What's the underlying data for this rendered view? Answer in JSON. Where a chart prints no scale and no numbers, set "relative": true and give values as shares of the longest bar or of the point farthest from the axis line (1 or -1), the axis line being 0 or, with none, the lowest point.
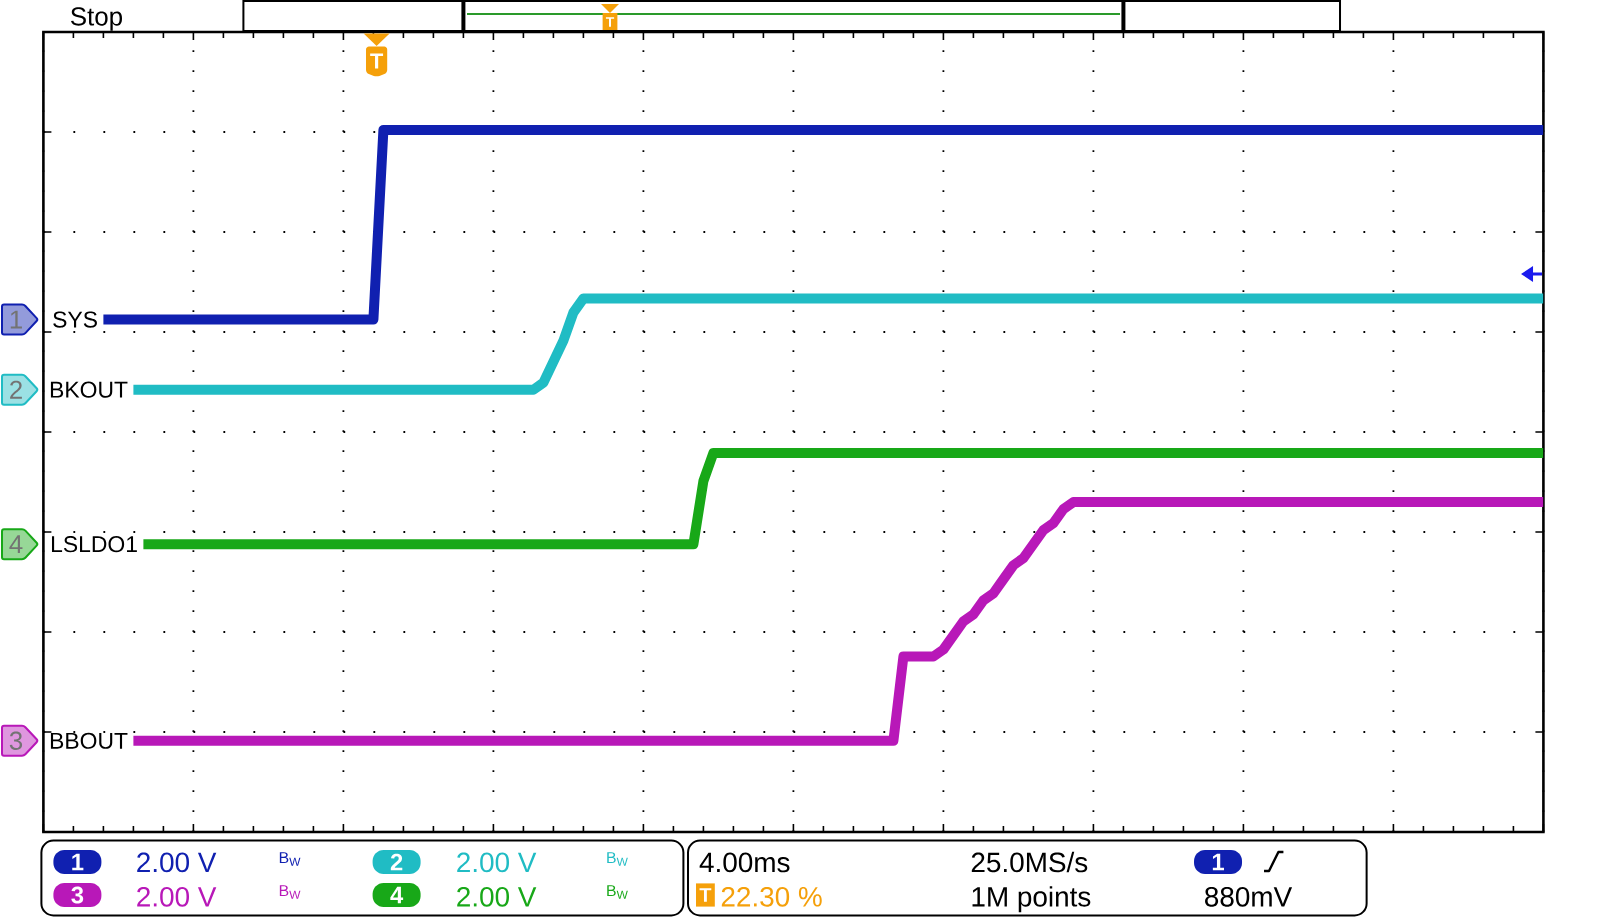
{
  "chart_data": {
    "type": "line",
    "relative": true,
    "grid": true,
    "line_style": "solid",
    "categories": [
      null,
      null,
      null,
      null,
      null,
      null,
      null,
      null,
      null,
      null,
      null,
      null,
      null,
      null,
      null,
      null,
      null,
      null,
      null,
      null,
      null,
      null,
      null,
      null,
      null,
      null,
      null,
      null,
      null,
      null,
      null,
      null,
      null,
      null,
      null,
      null,
      null,
      null,
      null,
      null,
      null,
      null,
      null,
      null,
      null,
      null,
      null,
      null,
      null,
      null,
      null,
      null,
      null,
      null,
      null,
      null,
      null,
      null,
      null,
      null,
      null,
      null,
      null,
      null,
      null,
      null,
      null,
      null,
      null,
      null,
      null,
      null,
      null,
      null,
      null,
      null,
      null,
      null,
      null,
      null,
      null,
      null,
      null,
      null,
      null,
      null,
      null,
      null,
      null,
      null,
      null,
      null,
      null,
      null,
      null,
      null,
      null,
      null,
      null,
      null,
      null,
      null,
      null,
      null,
      null,
      null,
      null,
      null,
      null,
      null,
      null,
      null,
      null,
      null,
      null,
      null,
      null,
      null,
      null,
      null,
      null,
      null,
      null,
      null,
      null,
      null,
      null,
      null,
      null,
      null,
      null,
      null,
      null,
      null,
      null,
      null,
      null,
      null,
      null,
      null,
      null,
      null,
      null,
      null,
      null,
      null,
      null,
      null,
      null,
      null,
      null
    ],
    "series": [
      {
        "name": "SYS",
        "color": "#1020b0",
        "values": [
          null,
          null,
          null,
          null,
          null,
          null,
          0.73,
          0.73,
          0.73,
          0.73,
          0.73,
          0.73,
          0.73,
          0.73,
          0.73,
          0.73,
          0.73,
          0.73,
          0.73,
          0.73,
          0.73,
          0.73,
          0.73,
          0.73,
          0.73,
          0.73,
          0.73,
          0.73,
          0.73,
          0.73,
          0.73,
          0.73,
          0.73,
          0.73,
          1,
          1,
          1,
          1,
          1,
          1,
          1,
          1,
          1,
          1,
          1,
          1,
          1,
          1,
          1,
          1,
          1,
          1,
          1,
          1,
          1,
          1,
          1,
          1,
          1,
          1,
          1,
          1,
          1,
          1,
          1,
          1,
          1,
          1,
          1,
          1,
          1,
          1,
          1,
          1,
          1,
          1,
          1,
          1,
          1,
          1,
          1,
          1,
          1,
          1,
          1,
          1,
          1,
          1,
          1,
          1,
          1,
          1,
          1,
          1,
          1,
          1,
          1,
          1,
          1,
          1,
          1,
          1,
          1,
          1,
          1,
          1,
          1,
          1,
          1,
          1,
          1,
          1,
          1,
          1,
          1,
          1,
          1,
          1,
          1,
          1,
          1,
          1,
          1,
          1,
          1,
          1,
          1,
          1,
          1,
          1,
          1,
          1,
          1,
          1,
          1,
          1,
          1,
          1,
          1,
          1,
          1,
          1,
          1,
          1,
          1,
          1,
          1,
          1,
          1,
          1,
          1
        ]
      },
      {
        "name": "BKOUT",
        "color": "#20bcc4",
        "values": [
          null,
          null,
          null,
          null,
          null,
          null,
          null,
          null,
          null,
          0.63,
          0.63,
          0.63,
          0.63,
          0.63,
          0.63,
          0.63,
          0.63,
          0.63,
          0.63,
          0.63,
          0.63,
          0.63,
          0.63,
          0.63,
          0.63,
          0.63,
          0.63,
          0.63,
          0.63,
          0.63,
          0.63,
          0.63,
          0.63,
          0.63,
          0.63,
          0.63,
          0.63,
          0.63,
          0.63,
          0.63,
          0.63,
          0.63,
          0.63,
          0.63,
          0.63,
          0.63,
          0.63,
          0.63,
          0.63,
          0.63,
          0.64,
          0.67,
          0.7,
          0.74,
          0.76,
          0.76,
          0.76,
          0.76,
          0.76,
          0.76,
          0.76,
          0.76,
          0.76,
          0.76,
          0.76,
          0.76,
          0.76,
          0.76,
          0.76,
          0.76,
          0.76,
          0.76,
          0.76,
          0.76,
          0.76,
          0.76,
          0.76,
          0.76,
          0.76,
          0.76,
          0.76,
          0.76,
          0.76,
          0.76,
          0.76,
          0.76,
          0.76,
          0.76,
          0.76,
          0.76,
          0.76,
          0.76,
          0.76,
          0.76,
          0.76,
          0.76,
          0.76,
          0.76,
          0.76,
          0.76,
          0.76,
          0.76,
          0.76,
          0.76,
          0.76,
          0.76,
          0.76,
          0.76,
          0.76,
          0.76,
          0.76,
          0.76,
          0.76,
          0.76,
          0.76,
          0.76,
          0.76,
          0.76,
          0.76,
          0.76,
          0.76,
          0.76,
          0.76,
          0.76,
          0.76,
          0.76,
          0.76,
          0.76,
          0.76,
          0.76,
          0.76,
          0.76,
          0.76,
          0.76,
          0.76,
          0.76,
          0.76,
          0.76,
          0.76,
          0.76,
          0.76,
          0.76,
          0.76,
          0.76,
          0.76,
          0.76,
          0.76,
          0.76,
          0.76,
          0.76,
          0.76
        ]
      },
      {
        "name": "LSLDO1",
        "color": "#18a818",
        "values": [
          null,
          null,
          null,
          null,
          null,
          null,
          null,
          null,
          null,
          null,
          0.41,
          0.41,
          0.41,
          0.41,
          0.41,
          0.41,
          0.41,
          0.41,
          0.41,
          0.41,
          0.41,
          0.41,
          0.41,
          0.41,
          0.41,
          0.41,
          0.41,
          0.41,
          0.41,
          0.41,
          0.41,
          0.41,
          0.41,
          0.41,
          0.41,
          0.41,
          0.41,
          0.41,
          0.41,
          0.41,
          0.41,
          0.41,
          0.41,
          0.41,
          0.41,
          0.41,
          0.41,
          0.41,
          0.41,
          0.41,
          0.41,
          0.41,
          0.41,
          0.41,
          0.41,
          0.41,
          0.41,
          0.41,
          0.41,
          0.41,
          0.41,
          0.41,
          0.41,
          0.41,
          0.41,
          0.41,
          0.5,
          0.54,
          0.54,
          0.54,
          0.54,
          0.54,
          0.54,
          0.54,
          0.54,
          0.54,
          0.54,
          0.54,
          0.54,
          0.54,
          0.54,
          0.54,
          0.54,
          0.54,
          0.54,
          0.54,
          0.54,
          0.54,
          0.54,
          0.54,
          0.54,
          0.54,
          0.54,
          0.54,
          0.54,
          0.54,
          0.54,
          0.54,
          0.54,
          0.54,
          0.54,
          0.54,
          0.54,
          0.54,
          0.54,
          0.54,
          0.54,
          0.54,
          0.54,
          0.54,
          0.54,
          0.54,
          0.54,
          0.54,
          0.54,
          0.54,
          0.54,
          0.54,
          0.54,
          0.54,
          0.54,
          0.54,
          0.54,
          0.54,
          0.54,
          0.54,
          0.54,
          0.54,
          0.54,
          0.54,
          0.54,
          0.54,
          0.54,
          0.54,
          0.54,
          0.54,
          0.54,
          0.54,
          0.54,
          0.54,
          0.54,
          0.54,
          0.54,
          0.54,
          0.54,
          0.54,
          0.54,
          0.54,
          0.54,
          0.54,
          0.54
        ]
      },
      {
        "name": "BBOUT",
        "color": "#b818b8",
        "values": [
          null,
          null,
          null,
          null,
          null,
          null,
          null,
          null,
          null,
          0.13,
          0.13,
          0.13,
          0.13,
          0.13,
          0.13,
          0.13,
          0.13,
          0.13,
          0.13,
          0.13,
          0.13,
          0.13,
          0.13,
          0.13,
          0.13,
          0.13,
          0.13,
          0.13,
          0.13,
          0.13,
          0.13,
          0.13,
          0.13,
          0.13,
          0.13,
          0.13,
          0.13,
          0.13,
          0.13,
          0.13,
          0.13,
          0.13,
          0.13,
          0.13,
          0.13,
          0.13,
          0.13,
          0.13,
          0.13,
          0.13,
          0.13,
          0.13,
          0.13,
          0.13,
          0.13,
          0.13,
          0.13,
          0.13,
          0.13,
          0.13,
          0.13,
          0.13,
          0.13,
          0.13,
          0.13,
          0.13,
          0.13,
          0.13,
          0.13,
          0.13,
          0.13,
          0.13,
          0.13,
          0.13,
          0.13,
          0.13,
          0.13,
          0.13,
          0.13,
          0.13,
          0.13,
          0.13,
          0.13,
          0.13,
          0.13,
          0.13,
          0.25,
          0.25,
          0.25,
          0.25,
          0.26,
          0.28,
          0.3,
          0.31,
          0.33,
          0.34,
          0.36,
          0.38,
          0.39,
          0.41,
          0.43,
          0.44,
          0.46,
          0.47,
          0.47,
          0.47,
          0.47,
          0.47,
          0.47,
          0.47,
          0.47,
          0.47,
          0.47,
          0.47,
          0.47,
          0.47,
          0.47,
          0.47,
          0.47,
          0.47,
          0.47,
          0.47,
          0.47,
          0.47,
          0.47,
          0.47,
          0.47,
          0.47,
          0.47,
          0.47,
          0.47,
          0.47,
          0.47,
          0.47,
          0.47,
          0.47,
          0.47,
          0.47,
          0.47,
          0.47,
          0.47,
          0.47,
          0.47,
          0.47,
          0.47,
          0.47,
          0.47,
          0.47,
          0.47,
          0.47,
          0.47
        ]
      }
    ],
    "annotations": [
      "Stop",
      "T",
      "T",
      "1",
      "2",
      "4",
      "3",
      "1",
      "2.00 V",
      "B$_{W}$",
      "2",
      "2.00 V",
      "B$_{W}$",
      "3",
      "2.00 V",
      "B$_{W}$",
      "4",
      "2.00 V",
      "B$_{W}$",
      "4.00ms",
      "T",
      "22.30 %",
      "25.0MS/s",
      "1M points",
      "1",
      "880mV"
    ]
  }
}
